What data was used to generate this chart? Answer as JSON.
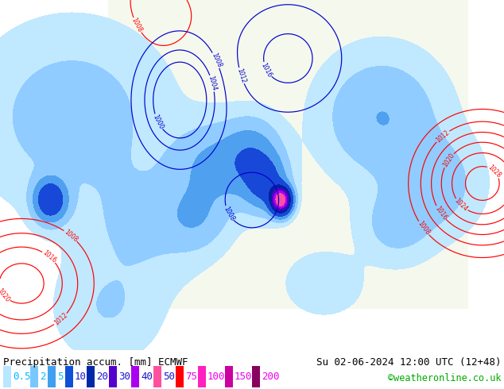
{
  "title_left": "Precipitation accum. [mm] ECMWF",
  "title_right": "Su 02-06-2024 12:00 UTC (12+48)",
  "credit": "©weatheronline.co.uk",
  "legend_values": [
    "0.5",
    "2",
    "5",
    "10",
    "20",
    "30",
    "40",
    "50",
    "75",
    "100",
    "150",
    "200"
  ],
  "legend_colors": [
    "#b8e8ff",
    "#78c8ff",
    "#40a0f0",
    "#1050d8",
    "#0028a8",
    "#5500cc",
    "#aa00ee",
    "#ff50a0",
    "#ff0000",
    "#ff20c0",
    "#cc00a0",
    "#880060"
  ],
  "legend_text_colors": [
    "#00b8ff",
    "#00b8ff",
    "#00b8ff",
    "#1818cc",
    "#1818cc",
    "#1818cc",
    "#1818cc",
    "#1818cc",
    "#ee00ee",
    "#ee00ee",
    "#ee00ee",
    "#ee00ee"
  ],
  "bg_color": "#ffffff",
  "map_bg_top": "#c8e8f8",
  "title_fontsize": 9.0,
  "legend_fontsize": 9.0,
  "credit_fontsize": 8.5,
  "figsize": [
    6.34,
    4.9
  ],
  "dpi": 100,
  "bottom_bar_height": 0.1,
  "map_area_colors": {
    "ocean_light": "#c8e4f0",
    "ocean_mid": "#a8cce0",
    "land_green": "#c8e0a0",
    "land_gray": "#c0c0b8",
    "precip_light": "#c8e8ff",
    "precip_mid": "#90c0f0",
    "precip_dark": "#2050d0",
    "precip_intense": "#8800cc"
  }
}
